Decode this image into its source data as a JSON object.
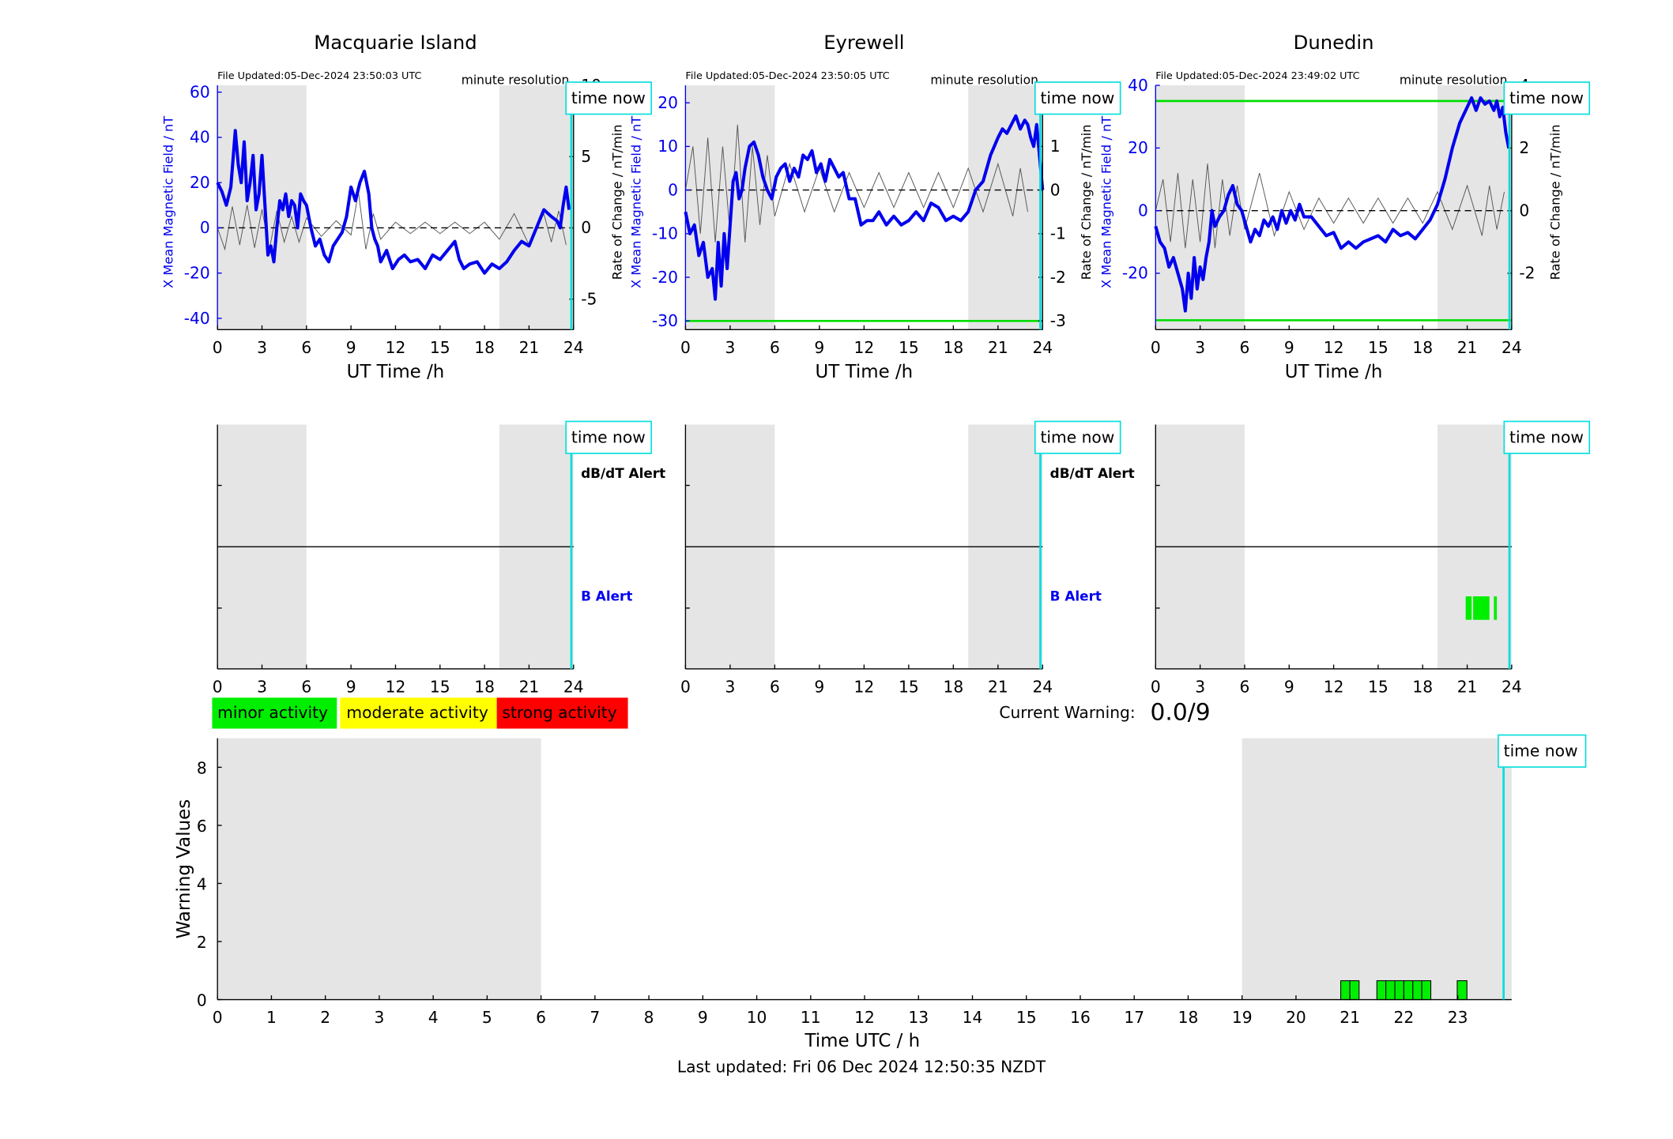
{
  "chart_data": [
    {
      "type": "line",
      "title": "Macquarie Island",
      "file_updated": "File Updated:05-Dec-2024 23:50:03 UTC",
      "resolution": "minute resolution",
      "time_now_label": "time now",
      "time_now": 23.85,
      "xlabel": "UT Time /h",
      "ylabel": "X Mean Magnetic Field / nT",
      "ylabel_right": "Rate of Change / nT/min",
      "xlim": [
        0,
        24
      ],
      "ylim": [
        -45,
        63
      ],
      "ylim_right": [
        -7.14,
        10
      ],
      "xticks": [
        0,
        3,
        6,
        9,
        12,
        15,
        18,
        21,
        24
      ],
      "yticks": [
        -40,
        -20,
        0,
        20,
        40,
        60
      ],
      "yticks_right": [
        -5,
        0,
        5,
        10
      ],
      "night_shading": [
        [
          0,
          6
        ],
        [
          19,
          24
        ]
      ],
      "threshold_lines": [],
      "series": [
        {
          "name": "X Mean Magnetic Field",
          "color": "#0000ee",
          "x": [
            0,
            0.3,
            0.6,
            0.9,
            1.2,
            1.4,
            1.6,
            1.8,
            2.0,
            2.2,
            2.4,
            2.6,
            2.8,
            3.0,
            3.2,
            3.4,
            3.6,
            3.8,
            4.0,
            4.2,
            4.4,
            4.6,
            4.8,
            5.0,
            5.2,
            5.4,
            5.6,
            5.8,
            6.0,
            6.3,
            6.6,
            6.9,
            7.2,
            7.5,
            7.8,
            8.1,
            8.4,
            8.7,
            9.0,
            9.3,
            9.6,
            9.9,
            10.2,
            10.4,
            10.6,
            10.8,
            11.0,
            11.4,
            11.8,
            12.2,
            12.6,
            13.0,
            13.5,
            14.0,
            14.5,
            15.0,
            15.5,
            16.0,
            16.3,
            16.6,
            17.0,
            17.5,
            18.0,
            18.5,
            19.0,
            19.5,
            20.0,
            20.5,
            21.0,
            21.5,
            22.0,
            22.5,
            22.9,
            23.1,
            23.3,
            23.5,
            23.7
          ],
          "y": [
            20,
            16,
            10,
            18,
            43,
            28,
            20,
            38,
            12,
            20,
            32,
            8,
            15,
            32,
            10,
            -12,
            -8,
            -15,
            0,
            12,
            8,
            15,
            5,
            12,
            10,
            0,
            15,
            12,
            10,
            0,
            -8,
            -5,
            -12,
            -15,
            -8,
            -5,
            -2,
            5,
            18,
            12,
            20,
            25,
            15,
            0,
            -5,
            -8,
            -15,
            -10,
            -18,
            -14,
            -12,
            -15,
            -14,
            -18,
            -12,
            -14,
            -10,
            -6,
            -14,
            -18,
            -16,
            -15,
            -20,
            -16,
            -18,
            -15,
            -10,
            -6,
            -8,
            0,
            8,
            5,
            3,
            0,
            10,
            18,
            8
          ]
        },
        {
          "name": "Rate of Change",
          "color": "#000000",
          "x": [
            0,
            0.5,
            1.0,
            1.5,
            2.0,
            2.5,
            3.0,
            3.5,
            4.0,
            4.5,
            5.0,
            5.5,
            6.0,
            7.0,
            8.0,
            9.0,
            9.5,
            10.0,
            10.5,
            11.0,
            12.0,
            13.0,
            14.0,
            15.0,
            16.0,
            17.0,
            18.0,
            19.0,
            20.0,
            21.0,
            22.0,
            22.5,
            23.0,
            23.5
          ],
          "y": [
            0,
            -1.5,
            1.5,
            -1.2,
            1.6,
            -1.4,
            1.3,
            -1.5,
            1.2,
            -1.0,
            0.8,
            -1.0,
            0.7,
            -0.6,
            0.5,
            -0.5,
            2.5,
            -1.5,
            1.0,
            -0.8,
            0.4,
            -0.4,
            0.4,
            -0.4,
            0.4,
            -0.4,
            0.4,
            -0.8,
            1.0,
            -1.2,
            1.0,
            -1.0,
            1.2,
            -1.2
          ]
        }
      ]
    },
    {
      "type": "line",
      "title": "Eyrewell",
      "file_updated": "File Updated:05-Dec-2024 23:50:05 UTC",
      "resolution": "minute resolution",
      "time_now_label": "time now",
      "time_now": 23.85,
      "xlabel": "UT Time /h",
      "ylabel": "X Mean Magnetic Field / nT",
      "ylabel_right": "Rate of Change / nT/min",
      "xlim": [
        0,
        24
      ],
      "ylim": [
        -32,
        24
      ],
      "ylim_right": [
        -3.2,
        2.4
      ],
      "xticks": [
        0,
        3,
        6,
        9,
        12,
        15,
        18,
        21,
        24
      ],
      "yticks": [
        -30,
        -20,
        -10,
        0,
        10,
        20
      ],
      "yticks_right": [
        -3,
        -2,
        -1,
        0,
        1,
        2
      ],
      "night_shading": [
        [
          0,
          6
        ],
        [
          19,
          24
        ]
      ],
      "threshold_lines": [
        {
          "value": -30,
          "color": "#00dd00"
        }
      ],
      "series": [
        {
          "name": "X Mean Magnetic Field",
          "color": "#0000ee",
          "x": [
            0,
            0.3,
            0.6,
            0.9,
            1.2,
            1.5,
            1.8,
            2.0,
            2.2,
            2.4,
            2.6,
            2.8,
            3.0,
            3.2,
            3.4,
            3.6,
            3.8,
            4.0,
            4.3,
            4.6,
            4.9,
            5.2,
            5.5,
            5.8,
            6.1,
            6.4,
            6.7,
            7.0,
            7.3,
            7.6,
            7.9,
            8.2,
            8.5,
            8.8,
            9.1,
            9.4,
            9.7,
            10.0,
            10.3,
            10.6,
            11.0,
            11.4,
            11.8,
            12.2,
            12.6,
            13.0,
            13.5,
            14.0,
            14.5,
            15.0,
            15.5,
            16.0,
            16.5,
            17.0,
            17.5,
            18.0,
            18.5,
            19.0,
            19.5,
            20.0,
            20.5,
            21.0,
            21.3,
            21.6,
            21.9,
            22.2,
            22.5,
            22.8,
            23.0,
            23.2,
            23.4,
            23.6,
            24.0
          ],
          "y": [
            -5,
            -10,
            -8,
            -15,
            -12,
            -20,
            -18,
            -25,
            -12,
            -22,
            -10,
            -18,
            -8,
            2,
            4,
            -2,
            0,
            5,
            10,
            11,
            8,
            3,
            0,
            -2,
            3,
            5,
            6,
            2,
            5,
            3,
            8,
            7,
            9,
            4,
            6,
            2,
            7,
            5,
            3,
            4,
            -2,
            -2,
            -8,
            -7,
            -7,
            -5,
            -8,
            -6,
            -8,
            -7,
            -5,
            -7,
            -3,
            -4,
            -7,
            -6,
            -7,
            -5,
            0,
            2,
            8,
            12,
            14,
            13,
            15,
            17,
            14,
            16,
            15,
            12,
            10,
            15,
            0
          ]
        },
        {
          "name": "Rate of Change",
          "color": "#000000",
          "x": [
            0,
            0.5,
            1.0,
            1.5,
            2.0,
            2.5,
            3.0,
            3.5,
            4.0,
            4.5,
            5.0,
            5.5,
            6.0,
            7.0,
            8.0,
            9.0,
            10.0,
            11.0,
            12.0,
            13.0,
            14.0,
            15.0,
            16.0,
            17.0,
            18.0,
            19.0,
            20.0,
            21.0,
            22.0,
            22.5,
            23.0
          ],
          "y": [
            0,
            1.0,
            -1.0,
            1.2,
            -1.2,
            1.0,
            -1.0,
            1.5,
            -1.2,
            1.0,
            -0.8,
            0.8,
            -0.6,
            0.6,
            -0.5,
            0.5,
            -0.5,
            0.4,
            -0.4,
            0.4,
            -0.4,
            0.4,
            -0.4,
            0.4,
            -0.4,
            0.5,
            -0.5,
            0.6,
            -0.6,
            0.5,
            -0.5
          ]
        }
      ]
    },
    {
      "type": "line",
      "title": "Dunedin",
      "file_updated": "File Updated:05-Dec-2024 23:49:02 UTC",
      "resolution": "minute resolution",
      "time_now_label": "time now",
      "time_now": 23.85,
      "xlabel": "UT Time /h",
      "ylabel": "X Mean Magnetic Field / nT",
      "ylabel_right": "Rate of Change / nT/min",
      "xlim": [
        0,
        24
      ],
      "ylim": [
        -38,
        40
      ],
      "ylim_right": [
        -3.8,
        4.0
      ],
      "xticks": [
        0,
        3,
        6,
        9,
        12,
        15,
        18,
        21,
        24
      ],
      "yticks": [
        -20,
        0,
        20,
        40
      ],
      "yticks_right": [
        -2,
        0,
        2,
        4
      ],
      "night_shading": [
        [
          0,
          6
        ],
        [
          19,
          24
        ]
      ],
      "threshold_lines": [
        {
          "value": 35,
          "color": "#00dd00"
        },
        {
          "value": -35,
          "color": "#00dd00"
        }
      ],
      "series": [
        {
          "name": "X Mean Magnetic Field",
          "color": "#0000ee",
          "x": [
            0,
            0.3,
            0.6,
            0.9,
            1.2,
            1.5,
            1.8,
            2.0,
            2.2,
            2.4,
            2.6,
            2.8,
            3.0,
            3.2,
            3.4,
            3.6,
            3.8,
            4.0,
            4.3,
            4.6,
            4.9,
            5.2,
            5.5,
            5.8,
            6.1,
            6.4,
            6.7,
            7.0,
            7.3,
            7.6,
            7.9,
            8.2,
            8.5,
            8.8,
            9.1,
            9.4,
            9.7,
            10.0,
            10.5,
            11.0,
            11.5,
            12.0,
            12.5,
            13.0,
            13.5,
            14.0,
            14.5,
            15.0,
            15.5,
            16.0,
            16.5,
            17.0,
            17.5,
            18.0,
            18.5,
            19.0,
            19.5,
            20.0,
            20.5,
            21.0,
            21.3,
            21.6,
            21.9,
            22.2,
            22.5,
            22.8,
            23.0,
            23.2,
            23.4,
            23.6,
            23.8
          ],
          "y": [
            -5,
            -10,
            -12,
            -18,
            -15,
            -20,
            -25,
            -32,
            -20,
            -28,
            -15,
            -25,
            -18,
            -22,
            -15,
            -10,
            0,
            -5,
            -2,
            0,
            5,
            8,
            2,
            0,
            -5,
            -10,
            -6,
            -8,
            -3,
            -5,
            -2,
            -6,
            0,
            -4,
            0,
            -3,
            2,
            -2,
            -2,
            -5,
            -8,
            -7,
            -12,
            -10,
            -12,
            -10,
            -9,
            -8,
            -10,
            -6,
            -8,
            -7,
            -9,
            -6,
            -3,
            2,
            10,
            20,
            28,
            33,
            36,
            32,
            36,
            34,
            35,
            32,
            35,
            30,
            33,
            25,
            20
          ]
        },
        {
          "name": "Rate of Change",
          "color": "#000000",
          "x": [
            0,
            0.5,
            1.0,
            1.5,
            2.0,
            2.5,
            3.0,
            3.5,
            4.0,
            4.5,
            5.0,
            5.5,
            6.0,
            7.0,
            8.0,
            9.0,
            10.0,
            11.0,
            12.0,
            13.0,
            14.0,
            15.0,
            16.0,
            17.0,
            18.0,
            19.0,
            20.0,
            21.0,
            22.0,
            22.5,
            23.0,
            23.5
          ],
          "y": [
            0,
            1.0,
            -1.0,
            1.2,
            -1.2,
            1.0,
            -1.0,
            1.5,
            -1.2,
            1.0,
            -0.8,
            0.8,
            -0.6,
            1.2,
            -0.8,
            0.6,
            -0.6,
            0.4,
            -0.4,
            0.4,
            -0.4,
            0.4,
            -0.4,
            0.4,
            -0.4,
            0.6,
            -0.6,
            0.8,
            -0.8,
            0.8,
            -0.6,
            0.6
          ]
        }
      ]
    },
    {
      "type": "bar",
      "title": "",
      "time_now_label": "time now",
      "time_now": 23.85,
      "alert_labels": {
        "dbdt": "dB/dT Alert",
        "b": "B Alert"
      },
      "xlim": [
        0,
        24
      ],
      "xticks": [
        0,
        3,
        6,
        9,
        12,
        15,
        18,
        21,
        24
      ],
      "night_shading": [
        [
          0,
          6
        ],
        [
          19,
          24
        ]
      ],
      "dbdt_alerts": [],
      "b_alerts": []
    },
    {
      "type": "bar",
      "title": "",
      "time_now_label": "time now",
      "time_now": 23.85,
      "alert_labels": {
        "dbdt": "dB/dT Alert",
        "b": "B Alert"
      },
      "xlim": [
        0,
        24
      ],
      "xticks": [
        0,
        3,
        6,
        9,
        12,
        15,
        18,
        21,
        24
      ],
      "night_shading": [
        [
          0,
          6
        ],
        [
          19,
          24
        ]
      ],
      "dbdt_alerts": [],
      "b_alerts": []
    },
    {
      "type": "bar",
      "title": "",
      "time_now_label": "time now",
      "time_now": 23.85,
      "alert_labels": {
        "dbdt": "",
        "b": ""
      },
      "xlim": [
        0,
        24
      ],
      "xticks": [
        0,
        3,
        6,
        9,
        12,
        15,
        18,
        21,
        24
      ],
      "night_shading": [
        [
          0,
          6
        ],
        [
          19,
          24
        ]
      ],
      "dbdt_alerts": [],
      "b_alerts": [
        [
          20.9,
          21.3
        ],
        [
          21.4,
          22.5
        ],
        [
          22.8,
          23.0
        ]
      ]
    },
    {
      "type": "bar",
      "title": "",
      "time_now_label": "time now",
      "time_now": 23.85,
      "xlabel": "Time UTC / h",
      "ylabel": "Warning Values",
      "xlim": [
        0,
        24
      ],
      "ylim": [
        0,
        9
      ],
      "xticks": [
        0,
        1,
        2,
        3,
        4,
        5,
        6,
        7,
        8,
        9,
        10,
        11,
        12,
        13,
        14,
        15,
        16,
        17,
        18,
        19,
        20,
        21,
        22,
        23
      ],
      "yticks": [
        0,
        2,
        4,
        6,
        8
      ],
      "night_shading": [
        [
          0,
          6
        ],
        [
          19,
          24
        ]
      ],
      "bar_color": "#00ee00",
      "bars": [
        {
          "start": 20.83,
          "end": 21.17,
          "value": 0.65
        },
        {
          "start": 21.5,
          "end": 22.5,
          "value": 0.65
        },
        {
          "start": 22.99,
          "end": 23.17,
          "value": 0.65
        }
      ]
    }
  ],
  "legend": {
    "items": [
      {
        "label": "minor activity",
        "color": "#00ee00"
      },
      {
        "label": "moderate activity",
        "color": "#ffff00"
      },
      {
        "label": "strong activity",
        "color": "#ff0000"
      }
    ]
  },
  "current_warning": {
    "label": "Current Warning:",
    "value": "0.0/9"
  },
  "footer": {
    "last_updated": "Last updated: Fri 06 Dec 2024 12:50:35 NZDT"
  }
}
